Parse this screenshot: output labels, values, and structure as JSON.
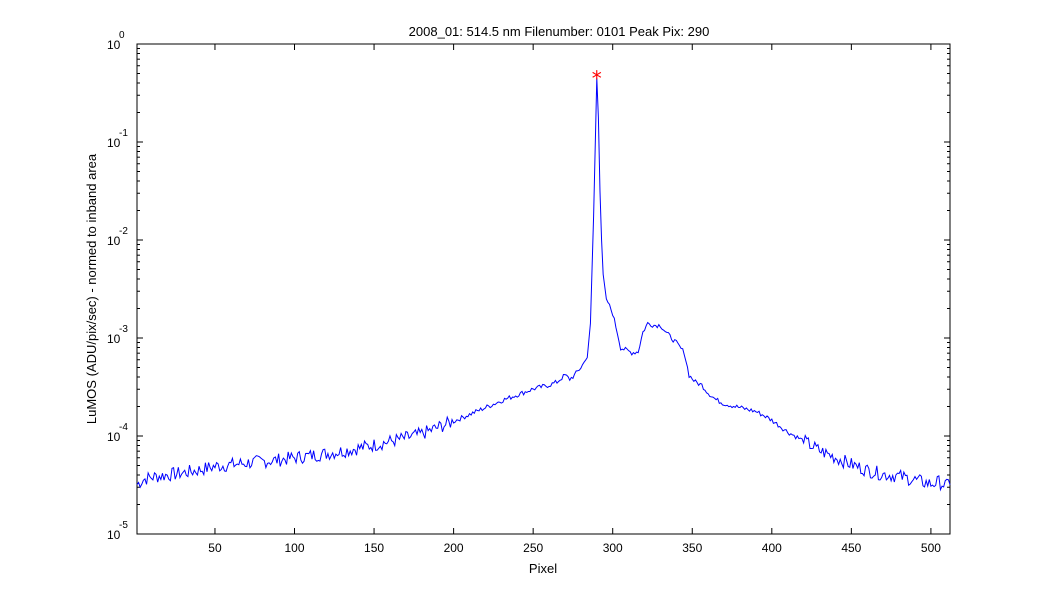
{
  "chart_data": {
    "type": "line",
    "title": "2008_01: 514.5 nm  Filenumber: 0101 Peak Pix: 290",
    "xlabel": "Pixel",
    "ylabel": "LuMOS (ADU/pix/sec) - normed to inband area",
    "xlim": [
      1,
      512
    ],
    "ylim": [
      1e-05,
      1
    ],
    "yscale": "log",
    "xticks": [
      50,
      100,
      150,
      200,
      250,
      300,
      350,
      400,
      450,
      500
    ],
    "xtick_labels": [
      "50",
      "100",
      "150",
      "200",
      "250",
      "300",
      "350",
      "400",
      "450",
      "500"
    ],
    "yticks": [
      1e-05,
      0.0001,
      0.001,
      0.01,
      0.1,
      1
    ],
    "ytick_base": [
      "10",
      "10",
      "10",
      "10",
      "10",
      "10"
    ],
    "ytick_exponents": [
      "-5",
      "-4",
      "-3",
      "-2",
      "-1",
      "0"
    ],
    "series": [
      {
        "color": "#0000ff",
        "x": [
          1,
          5,
          10,
          20,
          30,
          40,
          50,
          60,
          70,
          80,
          90,
          100,
          110,
          120,
          130,
          140,
          150,
          160,
          170,
          180,
          190,
          200,
          210,
          220,
          230,
          240,
          250,
          255,
          260,
          265,
          270,
          273,
          276,
          280,
          284,
          286,
          287,
          288,
          289,
          290,
          291,
          292,
          293,
          294,
          296,
          300,
          303,
          305,
          308,
          312,
          316,
          319,
          322,
          326,
          330,
          334,
          340,
          345,
          348,
          352,
          356,
          360,
          365,
          370,
          380,
          390,
          395,
          400,
          410,
          420,
          430,
          440,
          450,
          460,
          470,
          480,
          490,
          500,
          505,
          510,
          512
        ],
        "y": [
          3.2e-05,
          3.6e-05,
          3.8e-05,
          4e-05,
          4.2e-05,
          4.5e-05,
          4.9e-05,
          5.1e-05,
          5.3e-05,
          5.5e-05,
          5.7e-05,
          6e-05,
          6.3e-05,
          6.6e-05,
          7e-05,
          7.5e-05,
          8.1e-05,
          8.8e-05,
          9.55e-05,
          0.000105,
          0.000122,
          0.000141,
          0.000166,
          0.000195,
          0.000229,
          0.000263,
          0.000302,
          0.000316,
          0.000331,
          0.000355,
          0.000417,
          0.00038,
          0.000417,
          0.000501,
          0.000631,
          0.00141,
          0.00501,
          0.0178,
          0.0891,
          0.447,
          0.178,
          0.0316,
          0.01,
          0.00447,
          0.00251,
          0.00178,
          0.00112,
          0.000794,
          0.000759,
          0.000708,
          0.000724,
          0.00115,
          0.00141,
          0.00135,
          0.00135,
          0.00112,
          0.000891,
          0.000708,
          0.000417,
          0.000355,
          0.000331,
          0.000275,
          0.000234,
          0.000214,
          0.000195,
          0.000178,
          0.000162,
          0.000145,
          0.00011,
          8.91e-05,
          7.08e-05,
          6.03e-05,
          5.13e-05,
          4.47e-05,
          4.07e-05,
          3.89e-05,
          3.55e-05,
          3.24e-05,
          3.39e-05,
          3.09e-05,
          3.5e-05
        ]
      }
    ],
    "peak_marker": {
      "x": 290,
      "y": 0.447,
      "color": "#ff0000",
      "symbol": "*"
    }
  }
}
